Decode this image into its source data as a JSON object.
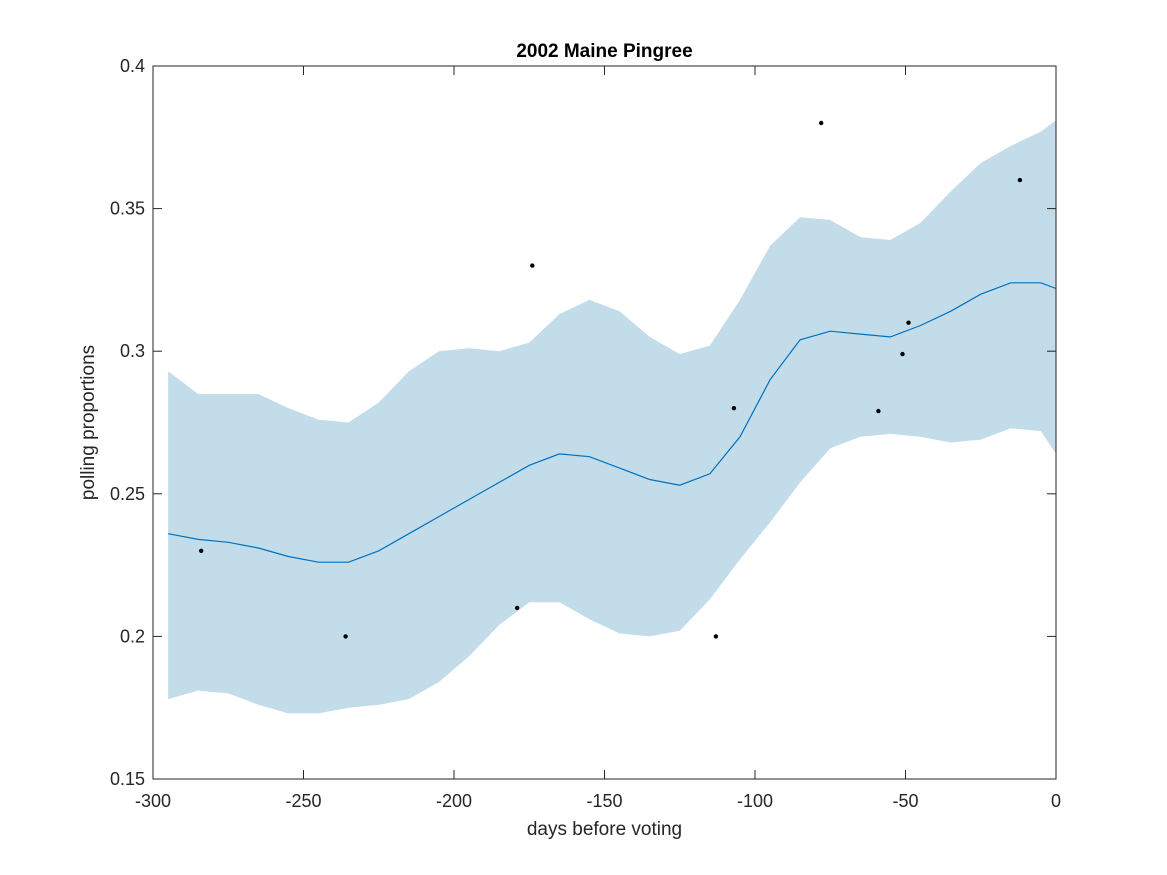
{
  "chart_data": {
    "type": "line",
    "title": "2002 Maine Pingree",
    "xlabel": "days before voting",
    "ylabel": "polling proportions",
    "xlim": [
      -300,
      0
    ],
    "ylim": [
      0.15,
      0.4
    ],
    "xticks": [
      -300,
      -250,
      -200,
      -150,
      -100,
      -50,
      0
    ],
    "xtick_labels": [
      "-300",
      "-250",
      "-200",
      "-150",
      "-100",
      "-50",
      "0"
    ],
    "yticks": [
      0.15,
      0.2,
      0.25,
      0.3,
      0.35,
      0.4
    ],
    "ytick_labels": [
      "0.15",
      "0.2",
      "0.25",
      "0.3",
      "0.35",
      "0.4"
    ],
    "grid": false,
    "colors": {
      "band": "#c2dcea",
      "line": "#0072bd",
      "points": "#000000",
      "axes": "#262626"
    },
    "band": {
      "x": [
        -295,
        -285,
        -275,
        -265,
        -255,
        -245,
        -235,
        -225,
        -215,
        -205,
        -195,
        -185,
        -175,
        -165,
        -155,
        -145,
        -135,
        -125,
        -115,
        -105,
        -95,
        -85,
        -75,
        -65,
        -55,
        -45,
        -35,
        -25,
        -15,
        -5,
        0
      ],
      "upper": [
        0.293,
        0.285,
        0.285,
        0.285,
        0.28,
        0.276,
        0.275,
        0.282,
        0.293,
        0.3,
        0.301,
        0.3,
        0.303,
        0.313,
        0.318,
        0.314,
        0.305,
        0.299,
        0.302,
        0.318,
        0.337,
        0.347,
        0.346,
        0.34,
        0.339,
        0.345,
        0.356,
        0.366,
        0.372,
        0.377,
        0.381
      ],
      "lower": [
        0.178,
        0.181,
        0.18,
        0.176,
        0.173,
        0.173,
        0.175,
        0.176,
        0.178,
        0.184,
        0.193,
        0.204,
        0.212,
        0.212,
        0.206,
        0.201,
        0.2,
        0.202,
        0.213,
        0.227,
        0.24,
        0.254,
        0.266,
        0.27,
        0.271,
        0.27,
        0.268,
        0.269,
        0.273,
        0.272,
        0.264
      ]
    },
    "series": [
      {
        "x": [
          -295,
          -285,
          -275,
          -265,
          -255,
          -245,
          -235,
          -225,
          -215,
          -205,
          -195,
          -185,
          -175,
          -165,
          -155,
          -145,
          -135,
          -125,
          -115,
          -105,
          -95,
          -85,
          -75,
          -65,
          -55,
          -45,
          -35,
          -25,
          -15,
          -5,
          0
        ],
        "values": [
          0.236,
          0.234,
          0.233,
          0.231,
          0.228,
          0.226,
          0.226,
          0.23,
          0.236,
          0.242,
          0.248,
          0.254,
          0.26,
          0.264,
          0.263,
          0.259,
          0.255,
          0.253,
          0.257,
          0.27,
          0.29,
          0.304,
          0.307,
          0.306,
          0.305,
          0.309,
          0.314,
          0.32,
          0.324,
          0.324,
          0.322
        ]
      }
    ],
    "points": [
      {
        "x": -284,
        "y": 0.23
      },
      {
        "x": -236,
        "y": 0.2
      },
      {
        "x": -179,
        "y": 0.21
      },
      {
        "x": -174,
        "y": 0.33
      },
      {
        "x": -113,
        "y": 0.2
      },
      {
        "x": -107,
        "y": 0.28
      },
      {
        "x": -78,
        "y": 0.38
      },
      {
        "x": -59,
        "y": 0.279
      },
      {
        "x": -51,
        "y": 0.299
      },
      {
        "x": -49,
        "y": 0.31
      },
      {
        "x": -12,
        "y": 0.36
      }
    ]
  }
}
